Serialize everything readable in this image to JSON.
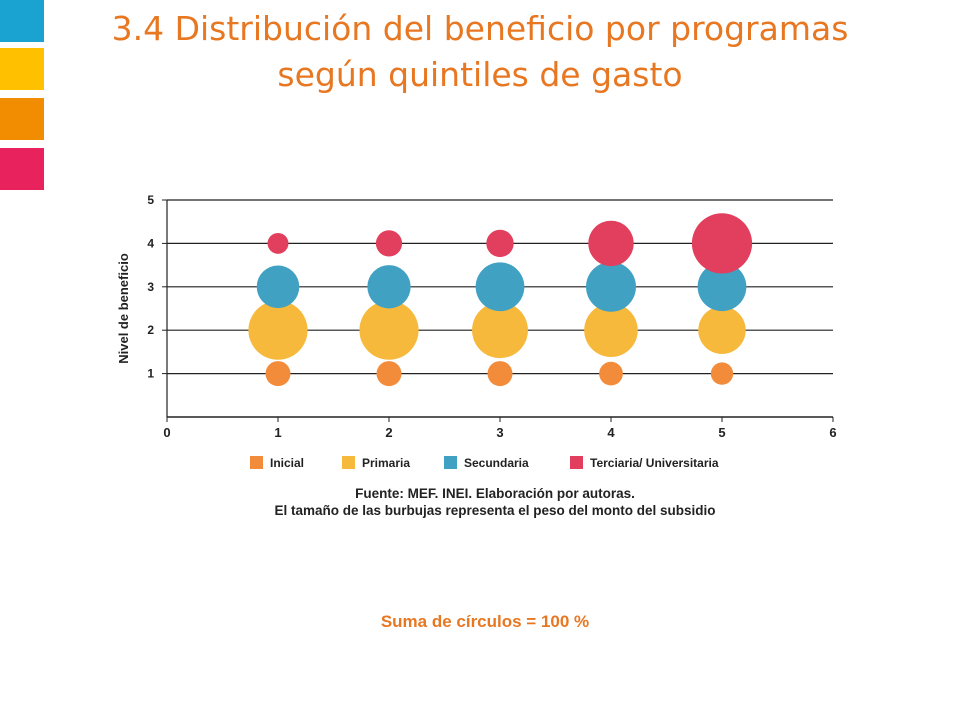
{
  "slide": {
    "title_line1": "3.4 Distribución del beneficio por programas",
    "title_line2": "según quintiles de gasto",
    "accent_colors": [
      "#1AA3D0",
      "#FFC000",
      "#F28C00",
      "#E8225C"
    ],
    "source_line1": "Fuente: MEF. INEI. Elaboración por autoras.",
    "source_line2": "El tamaño de las burbujas representa el peso del monto del subsidio",
    "note": "Suma de círculos = 100 %"
  },
  "chart_data": {
    "type": "scatter",
    "ylabel": "Nivel de beneficio",
    "xlim": [
      0,
      6
    ],
    "ylim": [
      0,
      5
    ],
    "x_ticks": [
      "0",
      "1",
      "2",
      "3",
      "4",
      "5",
      "6"
    ],
    "y_ticks": [
      "1",
      "2",
      "3",
      "4",
      "5"
    ],
    "horizontal_grid": true,
    "legend_position": "bottom",
    "size_encodes": "bubble area = relative subsidy amount",
    "series": [
      {
        "name": "Inicial",
        "color": "#F28B3A",
        "y": 1,
        "points": [
          {
            "x": 1,
            "size": 1.0
          },
          {
            "x": 2,
            "size": 1.0
          },
          {
            "x": 3,
            "size": 1.0
          },
          {
            "x": 4,
            "size": 0.9
          },
          {
            "x": 5,
            "size": 0.8
          }
        ]
      },
      {
        "name": "Primaria",
        "color": "#F6B93B",
        "y": 2,
        "points": [
          {
            "x": 1,
            "size": 5.6
          },
          {
            "x": 2,
            "size": 5.6
          },
          {
            "x": 3,
            "size": 5.0
          },
          {
            "x": 4,
            "size": 4.6
          },
          {
            "x": 5,
            "size": 3.6
          }
        ]
      },
      {
        "name": "Secundaria",
        "color": "#41A1C3",
        "y": 3,
        "points": [
          {
            "x": 1,
            "size": 2.9
          },
          {
            "x": 2,
            "size": 3.0
          },
          {
            "x": 3,
            "size": 3.8
          },
          {
            "x": 4,
            "size": 4.0
          },
          {
            "x": 5,
            "size": 3.8
          }
        ]
      },
      {
        "name": "Terciaria/ Universitaria",
        "color": "#E23F5E",
        "y": 4,
        "points": [
          {
            "x": 1,
            "size": 0.7
          },
          {
            "x": 2,
            "size": 1.1
          },
          {
            "x": 3,
            "size": 1.2
          },
          {
            "x": 4,
            "size": 3.3
          },
          {
            "x": 5,
            "size": 5.8
          }
        ]
      }
    ]
  }
}
